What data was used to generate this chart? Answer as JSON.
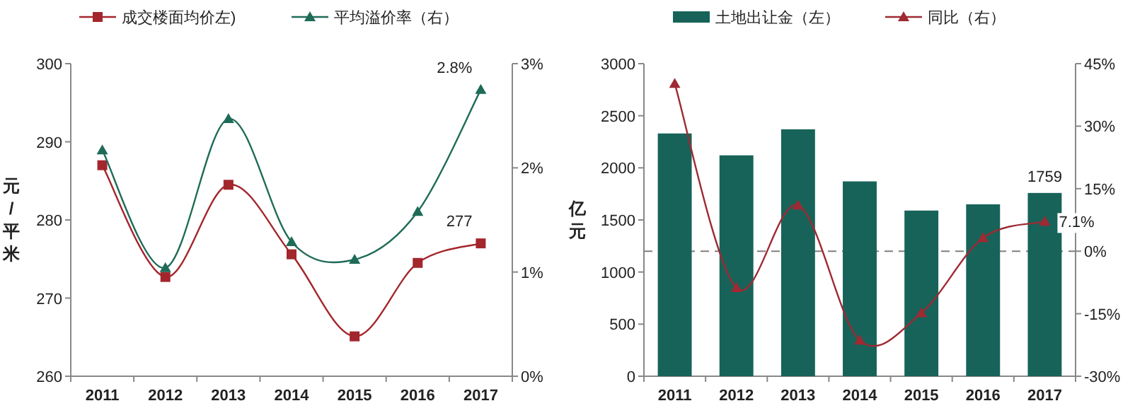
{
  "chart_data": [
    {
      "type": "line",
      "categories": [
        "2011",
        "2012",
        "2013",
        "2014",
        "2015",
        "2016",
        "2017"
      ],
      "ylabel": "元/平米",
      "legend": "top",
      "grid": false,
      "ylim": [
        260,
        300
      ],
      "yticks": [
        260,
        270,
        280,
        290,
        300
      ],
      "y2lim": [
        0,
        3
      ],
      "y2ticks": [
        {
          "value": 0,
          "label": "0%"
        },
        {
          "value": 1,
          "label": "1%"
        },
        {
          "value": 2,
          "label": "2%"
        },
        {
          "value": 3,
          "label": "3%"
        }
      ],
      "series": [
        {
          "name": "成交楼面均价左)",
          "color": "#a3262d",
          "marker": "square",
          "values": [
            287,
            272.7,
            284.5,
            275.6,
            265.1,
            274.5,
            277
          ],
          "value_labels": [
            null,
            null,
            null,
            null,
            null,
            null,
            "277"
          ]
        },
        {
          "name": "平均溢价率（右）",
          "color": "#1e6b58",
          "marker": "triangle",
          "axis": "y2",
          "values": [
            2.17,
            1.04,
            2.47,
            1.29,
            1.12,
            1.58,
            2.75
          ],
          "value_labels": [
            null,
            null,
            null,
            null,
            null,
            null,
            "2.8%"
          ]
        }
      ]
    },
    {
      "type": "bar",
      "categories": [
        "2011",
        "2012",
        "2013",
        "2014",
        "2015",
        "2016",
        "2017"
      ],
      "ylabel": "亿元",
      "legend": "top",
      "grid": false,
      "ylim": [
        0,
        3000
      ],
      "yticks": [
        0,
        500,
        1000,
        1500,
        2000,
        2500,
        3000
      ],
      "y2lim": [
        -30,
        45
      ],
      "y2ticks": [
        {
          "value": -30,
          "label": "-30%"
        },
        {
          "value": -15,
          "label": "-15%"
        },
        {
          "value": 0,
          "label": "0%"
        },
        {
          "value": 15,
          "label": "15%"
        },
        {
          "value": 30,
          "label": "30%"
        },
        {
          "value": 45,
          "label": "45%"
        }
      ],
      "ref_lines": [
        {
          "axis": "y2",
          "value": 0,
          "color": "#808080",
          "line_style": "dashed"
        }
      ],
      "series": [
        {
          "name": "土地出让金（左）",
          "color": "#17635a",
          "values": [
            2330,
            2120,
            2370,
            1870,
            1590,
            1650,
            1759
          ],
          "value_labels": [
            null,
            null,
            null,
            null,
            null,
            null,
            "1759"
          ]
        },
        {
          "name": "同比（右）",
          "type": "line",
          "color": "#9e2a33",
          "marker": "triangle",
          "axis": "y2",
          "values": [
            40.2,
            -8.8,
            11.0,
            -21.4,
            -14.8,
            3.2,
            7.1
          ],
          "value_labels": [
            null,
            null,
            null,
            null,
            null,
            null,
            "7.1%"
          ]
        }
      ]
    }
  ]
}
